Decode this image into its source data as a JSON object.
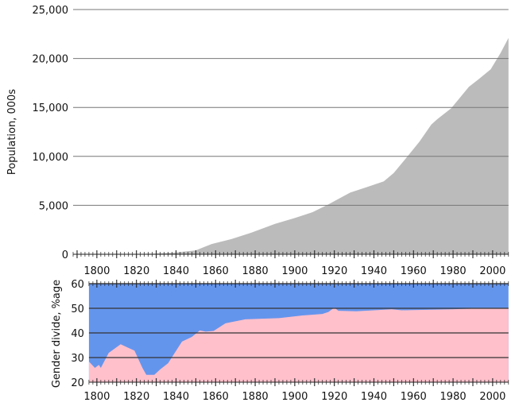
{
  "chart_data": [
    {
      "type": "area",
      "title": "",
      "xlabel": "",
      "ylabel": "Population, 000s",
      "xlim": [
        1788,
        2008
      ],
      "ylim": [
        0,
        25000
      ],
      "y_ticks": [
        "0",
        "5,000",
        "10,000",
        "15,000",
        "20,000",
        "25,000"
      ],
      "x_ticks": [
        "1800",
        "1820",
        "1840",
        "1860",
        "1880",
        "1900",
        "1920",
        "1940",
        "1960",
        "1980",
        "2000"
      ],
      "grid": true,
      "color": "#bbbbbb",
      "x": [
        1788,
        1800,
        1820,
        1830,
        1840,
        1850,
        1858,
        1868,
        1878,
        1890,
        1900,
        1909,
        1917,
        1928,
        1937,
        1945,
        1950,
        1957,
        1963,
        1969,
        1972,
        1979,
        1988,
        1993,
        1999,
        2004,
        2008
      ],
      "values": [
        1,
        5,
        34,
        70,
        190,
        400,
        1050,
        1550,
        2200,
        3100,
        3700,
        4300,
        5100,
        6300,
        6900,
        7450,
        8300,
        10000,
        11500,
        13250,
        13800,
        14900,
        17100,
        17900,
        18900,
        20550,
        22100
      ]
    },
    {
      "type": "area",
      "title": "",
      "xlabel": "",
      "ylabel": "Gender divide, %age",
      "xlim": [
        1796,
        2008
      ],
      "ylim": [
        20,
        60
      ],
      "y_ticks": [
        "20",
        "30",
        "40",
        "50",
        "60"
      ],
      "x_ticks": [
        "1800",
        "1820",
        "1840",
        "1860",
        "1880",
        "1900",
        "1920",
        "1940",
        "1960",
        "1980",
        "2000"
      ],
      "grid": true,
      "colors": {
        "upper": "#6495ed",
        "lower": "#ffc0cb"
      },
      "x": [
        1796,
        1799,
        1801,
        1802,
        1806,
        1812,
        1816,
        1819,
        1823,
        1825,
        1829,
        1832,
        1836,
        1843,
        1848,
        1852,
        1855,
        1859,
        1865,
        1875,
        1892,
        1904,
        1914,
        1917,
        1920,
        1922,
        1931,
        1949,
        1954,
        1979,
        1999,
        2008
      ],
      "values": [
        28.4,
        25.8,
        27,
        25.8,
        31.9,
        35.4,
        33.9,
        32.8,
        25.8,
        23,
        23,
        25.2,
        27.7,
        36.5,
        38.4,
        41,
        40.5,
        40.8,
        43.9,
        45.5,
        46,
        47.1,
        47.7,
        48.5,
        50.3,
        49,
        48.8,
        49.6,
        49.2,
        49.6,
        50.1,
        50
      ]
    }
  ]
}
